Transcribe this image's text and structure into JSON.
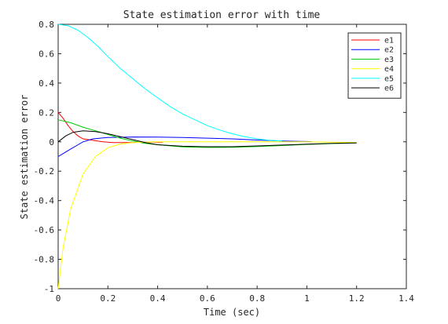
{
  "chart_data": {
    "type": "line",
    "title": "State estimation error with time",
    "xlabel": "Time (sec)",
    "ylabel": "State estimation error",
    "xlim": [
      0,
      1.4
    ],
    "ylim": [
      -1,
      0.8
    ],
    "xticks": [
      0,
      0.2,
      0.4,
      0.6,
      0.8,
      1,
      1.2,
      1.4
    ],
    "yticks": [
      -1,
      -0.8,
      -0.6,
      -0.4,
      -0.2,
      0,
      0.2,
      0.4,
      0.6,
      0.8
    ],
    "xtick_labels": [
      "0",
      "0.2",
      "0.4",
      "0.6",
      "0.8",
      "1",
      "1.2",
      "1.4"
    ],
    "ytick_labels": [
      "-1",
      "-0.8",
      "-0.6",
      "-0.4",
      "-0.2",
      "0",
      "0.2",
      "0.4",
      "0.6",
      "0.8"
    ],
    "grid": false,
    "legend_position": "top-right",
    "series": [
      {
        "name": "e1",
        "color": "#ff0000",
        "x": [
          0,
          0.02,
          0.04,
          0.06,
          0.08,
          0.1,
          0.14,
          0.18,
          0.22,
          0.28,
          0.35,
          0.42
        ],
        "y": [
          0.2,
          0.16,
          0.11,
          0.07,
          0.04,
          0.02,
          0.01,
          0.0,
          -0.005,
          -0.005,
          -0.003,
          -0.002
        ]
      },
      {
        "name": "e2",
        "color": "#0000ff",
        "x": [
          0,
          0.02,
          0.05,
          0.08,
          0.1,
          0.14,
          0.2,
          0.3,
          0.4,
          0.5,
          0.6,
          0.7,
          0.8,
          0.9,
          1.0,
          1.02
        ],
        "y": [
          -0.1,
          -0.08,
          -0.05,
          -0.02,
          0.0,
          0.02,
          0.03,
          0.033,
          0.032,
          0.03,
          0.025,
          0.02,
          0.012,
          0.006,
          0.002,
          0.0
        ]
      },
      {
        "name": "e3",
        "color": "#00cc00",
        "x": [
          0,
          0.05,
          0.1,
          0.15,
          0.2,
          0.25,
          0.3,
          0.35,
          0.4,
          0.5,
          0.6,
          0.7,
          0.8,
          0.9,
          1.0,
          1.1,
          1.2
        ],
        "y": [
          0.15,
          0.13,
          0.1,
          0.075,
          0.05,
          0.025,
          0.005,
          -0.01,
          -0.02,
          -0.035,
          -0.038,
          -0.037,
          -0.032,
          -0.025,
          -0.018,
          -0.012,
          -0.008
        ]
      },
      {
        "name": "e4",
        "color": "#ffff00",
        "x": [
          0,
          0.02,
          0.05,
          0.1,
          0.15,
          0.2,
          0.25,
          0.3,
          0.4,
          0.5,
          0.6,
          0.8,
          1.0,
          1.2
        ],
        "y": [
          -1.0,
          -0.72,
          -0.46,
          -0.22,
          -0.1,
          -0.04,
          -0.015,
          -0.005,
          0.0,
          0.0,
          0.0,
          0.0,
          0.0,
          -0.005
        ]
      },
      {
        "name": "e5",
        "color": "#00ffff",
        "x": [
          0,
          0.04,
          0.08,
          0.12,
          0.16,
          0.2,
          0.25,
          0.3,
          0.35,
          0.4,
          0.45,
          0.5,
          0.55,
          0.6,
          0.65,
          0.7,
          0.75,
          0.8,
          0.85,
          0.9
        ],
        "y": [
          0.8,
          0.79,
          0.76,
          0.71,
          0.65,
          0.58,
          0.5,
          0.43,
          0.36,
          0.3,
          0.24,
          0.19,
          0.15,
          0.11,
          0.08,
          0.055,
          0.035,
          0.02,
          0.01,
          0.005
        ]
      },
      {
        "name": "e6",
        "color": "#000000",
        "x": [
          0,
          0.03,
          0.06,
          0.1,
          0.15,
          0.2,
          0.25,
          0.3,
          0.35,
          0.4,
          0.5,
          0.6,
          0.7,
          0.8,
          0.9,
          1.0,
          1.1,
          1.2
        ],
        "y": [
          0.0,
          0.04,
          0.065,
          0.075,
          0.07,
          0.055,
          0.035,
          0.015,
          -0.005,
          -0.02,
          -0.03,
          -0.033,
          -0.033,
          -0.028,
          -0.022,
          -0.016,
          -0.011,
          -0.007
        ]
      }
    ]
  }
}
